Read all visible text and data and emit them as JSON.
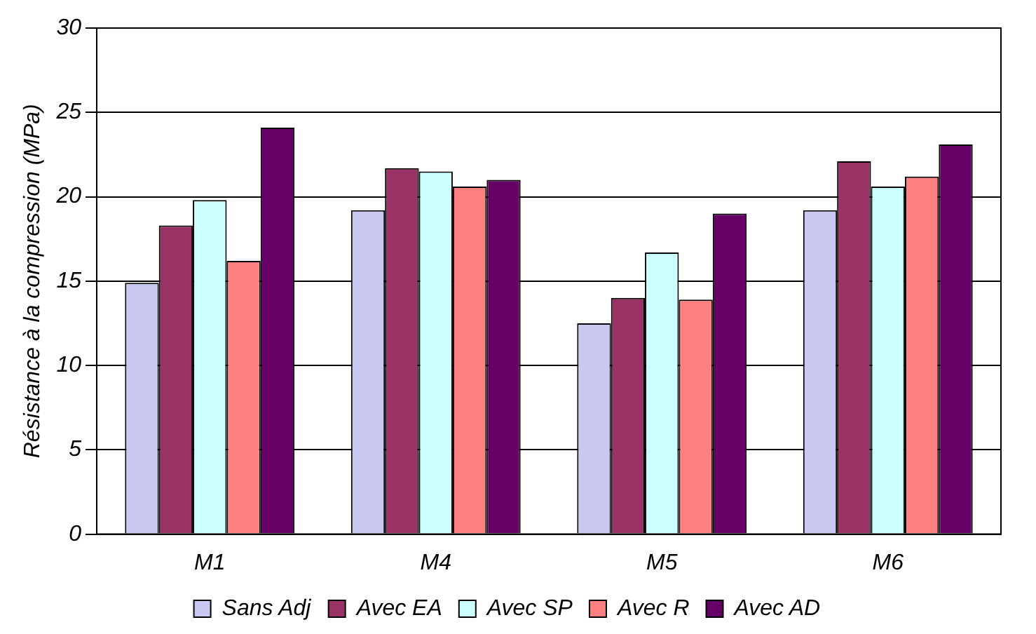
{
  "chart_data": {
    "type": "bar",
    "ylabel": "Résistance à la compression (MPa)",
    "categories": [
      "M1",
      "M4",
      "M5",
      "M6"
    ],
    "series": [
      {
        "name": "Sans Adj",
        "color": "#c8c8f0",
        "values": [
          14.9,
          19.2,
          12.5,
          19.2
        ]
      },
      {
        "name": "Avec EA",
        "color": "#993366",
        "values": [
          18.3,
          21.7,
          14.0,
          22.1
        ]
      },
      {
        "name": "Avec SP",
        "color": "#ccffff",
        "values": [
          19.8,
          21.5,
          16.7,
          20.6
        ]
      },
      {
        "name": "Avec R",
        "color": "#ff8080",
        "values": [
          16.2,
          20.6,
          13.9,
          21.2
        ]
      },
      {
        "name": "Avec AD",
        "color": "#660066",
        "values": [
          24.1,
          21.0,
          19.0,
          23.1
        ]
      }
    ],
    "ylim": [
      0,
      30
    ],
    "yticks": [
      0,
      5,
      10,
      15,
      20,
      25,
      30
    ],
    "grid": "y",
    "legend": "bottom"
  }
}
